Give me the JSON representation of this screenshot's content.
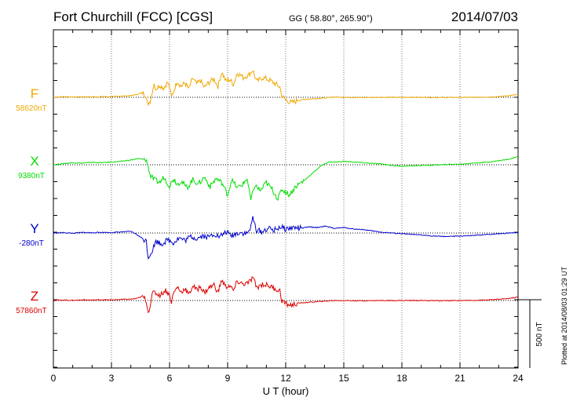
{
  "header": {
    "station": "Fort Churchill (FCC)  [CGS]",
    "coords": "GG ( 58.80°, 265.90°)",
    "date": "2014/07/03"
  },
  "side_note": "Plotted at 2014/08/03 01:29 UT",
  "colors": {
    "F": "#f0a800",
    "X": "#00dd00",
    "Y": "#0000cc",
    "Z": "#dd0000",
    "frame": "#000000"
  },
  "chart_data": {
    "type": "line",
    "title": "Fort Churchill (FCC)  [CGS]",
    "xlabel": "U T (hour)",
    "ylabel": "",
    "xlim": [
      0,
      24
    ],
    "xticks": [
      0,
      3,
      6,
      9,
      12,
      15,
      18,
      21,
      24
    ],
    "scale_bar": {
      "value_nT": 500,
      "label": "500 nT"
    },
    "series": [
      {
        "name": "F",
        "baseline_label": "58620nT",
        "color": "#f0a800",
        "points": [
          [
            0,
            0
          ],
          [
            0.5,
            5
          ],
          [
            1,
            2
          ],
          [
            1.5,
            4
          ],
          [
            2,
            3
          ],
          [
            2.5,
            5
          ],
          [
            3,
            4
          ],
          [
            3.5,
            8
          ],
          [
            4,
            12
          ],
          [
            4.3,
            20
          ],
          [
            4.6,
            35
          ],
          [
            4.8,
            10
          ],
          [
            4.9,
            -70
          ],
          [
            5,
            -30
          ],
          [
            5.1,
            40
          ],
          [
            5.2,
            100
          ],
          [
            5.3,
            60
          ],
          [
            5.5,
            90
          ],
          [
            5.7,
            70
          ],
          [
            5.9,
            110
          ],
          [
            6,
            70
          ],
          [
            6.1,
            0
          ],
          [
            6.2,
            40
          ],
          [
            6.4,
            120
          ],
          [
            6.6,
            80
          ],
          [
            6.8,
            105
          ],
          [
            7,
            60
          ],
          [
            7.2,
            140
          ],
          [
            7.4,
            95
          ],
          [
            7.6,
            125
          ],
          [
            7.8,
            70
          ],
          [
            8,
            105
          ],
          [
            8.3,
            135
          ],
          [
            8.5,
            80
          ],
          [
            8.7,
            185
          ],
          [
            8.9,
            120
          ],
          [
            9.1,
            130
          ],
          [
            9.3,
            95
          ],
          [
            9.5,
            180
          ],
          [
            9.8,
            145
          ],
          [
            10.1,
            165
          ],
          [
            10.3,
            200
          ],
          [
            10.5,
            115
          ],
          [
            10.8,
            145
          ],
          [
            11.1,
            130
          ],
          [
            11.4,
            105
          ],
          [
            11.7,
            75
          ],
          [
            11.8,
            10
          ],
          [
            12,
            -20
          ],
          [
            12.3,
            -40
          ],
          [
            12.6,
            -25
          ],
          [
            13,
            -15
          ],
          [
            13.5,
            -10
          ],
          [
            14,
            -5
          ],
          [
            14.5,
            2
          ],
          [
            15,
            0
          ],
          [
            16,
            -2
          ],
          [
            17,
            0
          ],
          [
            18,
            0
          ],
          [
            19,
            0
          ],
          [
            20,
            -2
          ],
          [
            21,
            0
          ],
          [
            22,
            0
          ],
          [
            23,
            5
          ],
          [
            23.5,
            12
          ],
          [
            24,
            20
          ]
        ]
      },
      {
        "name": "X",
        "baseline_label": "9380nT",
        "color": "#00dd00",
        "points": [
          [
            0,
            0
          ],
          [
            0.5,
            8
          ],
          [
            1,
            15
          ],
          [
            1.5,
            12
          ],
          [
            2,
            18
          ],
          [
            2.5,
            15
          ],
          [
            3,
            20
          ],
          [
            3.5,
            25
          ],
          [
            4,
            35
          ],
          [
            4.4,
            45
          ],
          [
            4.7,
            40
          ],
          [
            4.85,
            20
          ],
          [
            5,
            -80
          ],
          [
            5.2,
            -110
          ],
          [
            5.5,
            -130
          ],
          [
            5.7,
            -90
          ],
          [
            6,
            -155
          ],
          [
            6.2,
            -100
          ],
          [
            6.4,
            -140
          ],
          [
            6.6,
            -120
          ],
          [
            6.9,
            -170
          ],
          [
            7.2,
            -110
          ],
          [
            7.5,
            -140
          ],
          [
            7.8,
            -90
          ],
          [
            8.1,
            -160
          ],
          [
            8.4,
            -100
          ],
          [
            8.7,
            -130
          ],
          [
            9,
            -220
          ],
          [
            9.2,
            -110
          ],
          [
            9.5,
            -170
          ],
          [
            9.8,
            -140
          ],
          [
            10,
            -100
          ],
          [
            10.2,
            -260
          ],
          [
            10.4,
            -150
          ],
          [
            10.7,
            -190
          ],
          [
            11,
            -130
          ],
          [
            11.3,
            -180
          ],
          [
            11.6,
            -250
          ],
          [
            11.8,
            -180
          ],
          [
            12.2,
            -220
          ],
          [
            12.5,
            -160
          ],
          [
            13,
            -110
          ],
          [
            13.4,
            -60
          ],
          [
            13.8,
            -10
          ],
          [
            14.2,
            20
          ],
          [
            14.6,
            20
          ],
          [
            15,
            25
          ],
          [
            15.5,
            20
          ],
          [
            16,
            15
          ],
          [
            16.5,
            10
          ],
          [
            17,
            5
          ],
          [
            17.5,
            -5
          ],
          [
            18,
            -10
          ],
          [
            18.5,
            -8
          ],
          [
            19,
            -5
          ],
          [
            19.5,
            -3
          ],
          [
            20,
            0
          ],
          [
            20.5,
            3
          ],
          [
            21,
            5
          ],
          [
            21.5,
            10
          ],
          [
            22,
            15
          ],
          [
            22.5,
            20
          ],
          [
            23,
            30
          ],
          [
            23.5,
            40
          ],
          [
            24,
            60
          ]
        ]
      },
      {
        "name": "Y",
        "baseline_label": "-280nT",
        "color": "#0000cc",
        "points": [
          [
            0,
            0
          ],
          [
            0.5,
            3
          ],
          [
            1,
            -2
          ],
          [
            1.5,
            4
          ],
          [
            2,
            2
          ],
          [
            2.5,
            5
          ],
          [
            3,
            3
          ],
          [
            3.5,
            8
          ],
          [
            4,
            12
          ],
          [
            4.3,
            -10
          ],
          [
            4.6,
            -40
          ],
          [
            4.8,
            -60
          ],
          [
            4.9,
            -180
          ],
          [
            5.1,
            -130
          ],
          [
            5.3,
            -60
          ],
          [
            5.6,
            -80
          ],
          [
            5.9,
            -50
          ],
          [
            6.2,
            -70
          ],
          [
            6.5,
            -35
          ],
          [
            6.8,
            -55
          ],
          [
            7.1,
            -25
          ],
          [
            7.4,
            -40
          ],
          [
            7.7,
            -20
          ],
          [
            8,
            -30
          ],
          [
            8.3,
            -5
          ],
          [
            8.6,
            -30
          ],
          [
            8.9,
            10
          ],
          [
            9.2,
            -20
          ],
          [
            9.6,
            5
          ],
          [
            10,
            -5
          ],
          [
            10.2,
            40
          ],
          [
            10.3,
            110
          ],
          [
            10.5,
            20
          ],
          [
            10.8,
            10
          ],
          [
            11.1,
            35
          ],
          [
            11.4,
            20
          ],
          [
            11.7,
            45
          ],
          [
            12,
            30
          ],
          [
            12.4,
            40
          ],
          [
            12.8,
            35
          ],
          [
            13.2,
            45
          ],
          [
            13.6,
            40
          ],
          [
            14,
            50
          ],
          [
            14.5,
            35
          ],
          [
            15,
            40
          ],
          [
            15.5,
            30
          ],
          [
            16,
            25
          ],
          [
            16.5,
            15
          ],
          [
            17,
            5
          ],
          [
            17.5,
            0
          ],
          [
            18,
            -5
          ],
          [
            18.5,
            -10
          ],
          [
            19,
            -15
          ],
          [
            19.5,
            -20
          ],
          [
            20,
            -25
          ],
          [
            20.5,
            -25
          ],
          [
            21,
            -22
          ],
          [
            21.5,
            -20
          ],
          [
            22,
            -15
          ],
          [
            22.5,
            -10
          ],
          [
            23,
            -5
          ],
          [
            23.5,
            0
          ],
          [
            24,
            5
          ]
        ]
      },
      {
        "name": "Z",
        "baseline_label": "57860nT",
        "color": "#dd0000",
        "points": [
          [
            0,
            0
          ],
          [
            0.5,
            4
          ],
          [
            1,
            1
          ],
          [
            1.5,
            5
          ],
          [
            2,
            3
          ],
          [
            2.5,
            6
          ],
          [
            3,
            4
          ],
          [
            3.5,
            8
          ],
          [
            4,
            10
          ],
          [
            4.3,
            15
          ],
          [
            4.6,
            30
          ],
          [
            4.8,
            0
          ],
          [
            4.9,
            -90
          ],
          [
            5,
            -30
          ],
          [
            5.1,
            40
          ],
          [
            5.2,
            60
          ],
          [
            5.5,
            40
          ],
          [
            5.8,
            75
          ],
          [
            6,
            40
          ],
          [
            6.1,
            -10
          ],
          [
            6.2,
            50
          ],
          [
            6.4,
            100
          ],
          [
            6.6,
            60
          ],
          [
            6.8,
            90
          ],
          [
            7,
            40
          ],
          [
            7.2,
            110
          ],
          [
            7.4,
            75
          ],
          [
            7.6,
            105
          ],
          [
            7.8,
            55
          ],
          [
            8,
            90
          ],
          [
            8.3,
            115
          ],
          [
            8.5,
            60
          ],
          [
            8.7,
            150
          ],
          [
            8.9,
            100
          ],
          [
            9.1,
            110
          ],
          [
            9.3,
            70
          ],
          [
            9.5,
            140
          ],
          [
            9.8,
            120
          ],
          [
            10.1,
            130
          ],
          [
            10.3,
            170
          ],
          [
            10.5,
            95
          ],
          [
            10.8,
            120
          ],
          [
            11.1,
            110
          ],
          [
            11.4,
            90
          ],
          [
            11.7,
            70
          ],
          [
            11.8,
            0
          ],
          [
            12,
            -25
          ],
          [
            12.3,
            -35
          ],
          [
            12.6,
            -20
          ],
          [
            13,
            -15
          ],
          [
            13.5,
            -10
          ],
          [
            14,
            -5
          ],
          [
            14.5,
            0
          ],
          [
            15,
            0
          ],
          [
            16,
            -2
          ],
          [
            17,
            0
          ],
          [
            18,
            0
          ],
          [
            19,
            0
          ],
          [
            20,
            -2
          ],
          [
            21,
            0
          ],
          [
            22,
            2
          ],
          [
            23,
            8
          ],
          [
            23.5,
            15
          ],
          [
            24,
            25
          ]
        ]
      }
    ]
  }
}
